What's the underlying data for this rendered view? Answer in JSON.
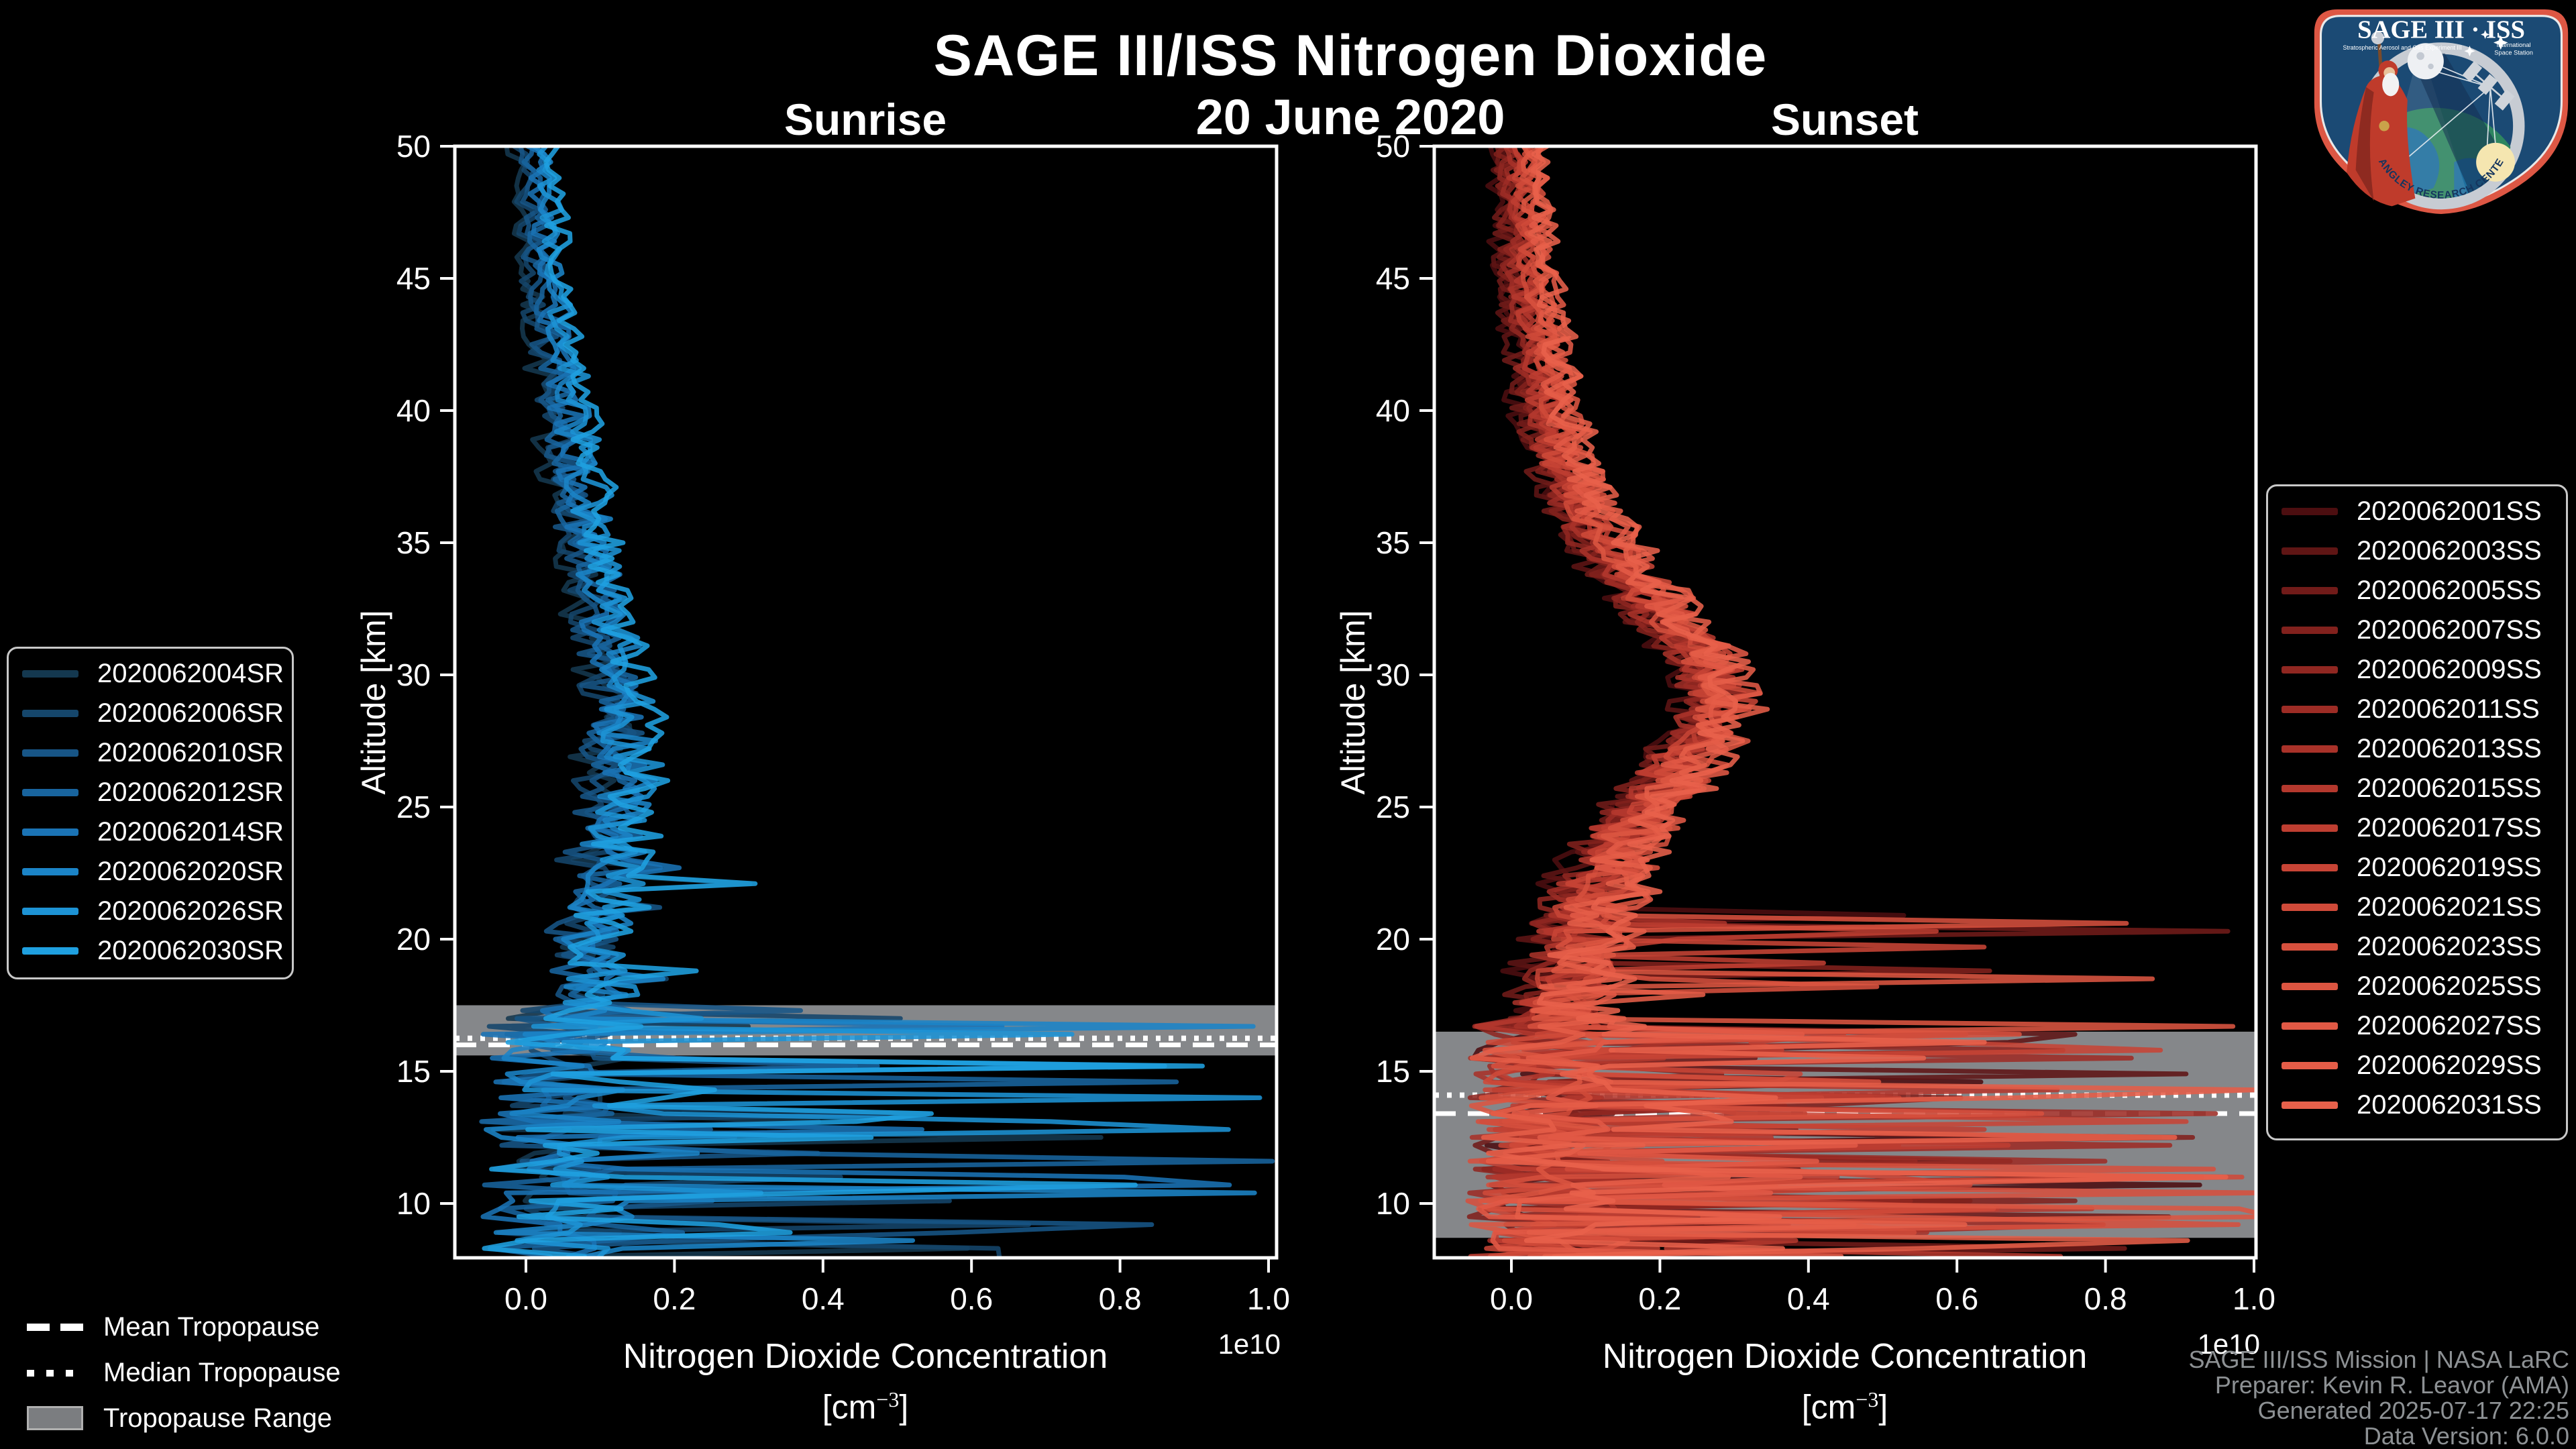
{
  "header": {
    "title": "SAGE III/ISS Nitrogen Dioxide",
    "date": "20 June 2020",
    "sunrise_label": "Sunrise",
    "sunset_label": "Sunset"
  },
  "axes": {
    "x_label": "Nitrogen Dioxide Concentration",
    "x_unit_prefix": "[cm",
    "x_unit_exp": "−3",
    "x_unit_suffix": "]",
    "x_offset_label": "1e10",
    "y_label": "Altitude [km]",
    "x_tick_labels": [
      "0.0",
      "0.2",
      "0.4",
      "0.6",
      "0.8",
      "1.0"
    ],
    "y_tick_labels": [
      "10",
      "15",
      "20",
      "25",
      "30",
      "35",
      "40",
      "45",
      "50"
    ]
  },
  "chart_data": [
    {
      "type": "line",
      "panel": "Sunrise",
      "xlabel": "Nitrogen Dioxide Concentration [cm^-3]",
      "ylabel": "Altitude [km]",
      "x_scale_factor": "1e10",
      "xlim_1e10": [
        -0.095,
        1.01
      ],
      "ylim_km": [
        8.0,
        50
      ],
      "series": [
        {
          "id": "2020062004SR",
          "color": "#14384f"
        },
        {
          "id": "2020062006SR",
          "color": "#15466b"
        },
        {
          "id": "2020062010SR",
          "color": "#175586"
        },
        {
          "id": "2020062012SR",
          "color": "#18649e"
        },
        {
          "id": "2020062014SR",
          "color": "#1a73b5"
        },
        {
          "id": "2020062020SR",
          "color": "#1b84c7"
        },
        {
          "id": "2020062026SR",
          "color": "#1d93d5"
        },
        {
          "id": "2020062030SR",
          "color": "#1fa0e0"
        }
      ],
      "mean_profile": {
        "altitude_km": [
          50,
          48,
          46,
          44,
          42,
          40,
          38,
          36,
          34,
          32,
          30,
          28,
          26,
          24,
          22,
          20,
          18.5,
          17.4
        ],
        "concentration_1e10": [
          0.01,
          0.016,
          0.022,
          0.03,
          0.04,
          0.051,
          0.063,
          0.076,
          0.09,
          0.105,
          0.118,
          0.127,
          0.124,
          0.113,
          0.098,
          0.085,
          0.08,
          0.088
        ]
      },
      "noise": {
        "turbulent_below_km": 17.4,
        "sporadic_below_km": 23,
        "max_1e10": 1.03
      },
      "tropopause": {
        "range_top_km": 17.5,
        "range_bottom_km": 15.6,
        "mean_km": 16.0,
        "median_km": 16.25
      }
    },
    {
      "type": "line",
      "panel": "Sunset",
      "xlabel": "Nitrogen Dioxide Concentration [cm^-3]",
      "ylabel": "Altitude [km]",
      "x_scale_factor": "1e10",
      "xlim_1e10": [
        -0.095,
        1.01
      ],
      "ylim_km": [
        8.0,
        50
      ],
      "series": [
        {
          "id": "2020062001SS",
          "color": "#4c0e10"
        },
        {
          "id": "2020062003SS",
          "color": "#5f1514"
        },
        {
          "id": "2020062005SS",
          "color": "#711b19"
        },
        {
          "id": "2020062007SS",
          "color": "#82211d"
        },
        {
          "id": "2020062009SS",
          "color": "#902721"
        },
        {
          "id": "2020062011SS",
          "color": "#9d2c25"
        },
        {
          "id": "2020062013SS",
          "color": "#a93229"
        },
        {
          "id": "2020062015SS",
          "color": "#b4382d"
        },
        {
          "id": "2020062017SS",
          "color": "#be3e31"
        },
        {
          "id": "2020062019SS",
          "color": "#c74435"
        },
        {
          "id": "2020062021SS",
          "color": "#cf4a39"
        },
        {
          "id": "2020062023SS",
          "color": "#d6503d"
        },
        {
          "id": "2020062025SS",
          "color": "#dc5541"
        },
        {
          "id": "2020062027SS",
          "color": "#e15945"
        },
        {
          "id": "2020062029SS",
          "color": "#e55d48"
        },
        {
          "id": "2020062031SS",
          "color": "#e8614b"
        }
      ],
      "mean_profile": {
        "altitude_km": [
          50,
          48,
          46,
          44,
          42,
          40,
          38,
          36,
          34,
          32,
          31,
          30,
          29,
          28,
          26,
          24,
          22,
          20,
          18,
          16.9
        ],
        "concentration_1e10": [
          0.01,
          0.014,
          0.019,
          0.027,
          0.037,
          0.05,
          0.068,
          0.103,
          0.15,
          0.215,
          0.248,
          0.272,
          0.283,
          0.268,
          0.213,
          0.158,
          0.118,
          0.088,
          0.07,
          0.066
        ]
      },
      "noise": {
        "turbulent_below_km": 16.9,
        "sporadic_below_km": 21,
        "max_1e10": 1.03
      },
      "tropopause": {
        "range_top_km": 16.5,
        "range_bottom_km": 8.7,
        "mean_km": 13.4,
        "median_km": 14.1
      }
    }
  ],
  "tropopause_legend": [
    {
      "label": "Mean Tropopause",
      "style": "dashed"
    },
    {
      "label": "Median Tropopause",
      "style": "dotted"
    },
    {
      "label": "Tropopause Range",
      "style": "band"
    }
  ],
  "footer": {
    "line1": "SAGE III/ISS Mission | NASA LaRC",
    "line2": "Preparer: Kevin R. Leavor (AMA)",
    "line3": "Generated 2025-07-17 22:25",
    "line4": "Data Version: 6.0.0"
  },
  "logo": {
    "title": "SAGE III · ISS",
    "sub_left": "Stratospheric Aerosol and Gas Experiment III",
    "sub_right_line1": "International",
    "sub_right_line2": "Space Station",
    "ring_text": "BALL • NASA LANGLEY RESEARCH CENTER • TAS-I • ESA"
  },
  "colors": {
    "background": "#000000",
    "text": "#ffffff",
    "footer_text": "#8d9194",
    "tropopause_band": "#85878a",
    "tropopause_lines": "#ffffff",
    "legend_border": "#c8c8c8",
    "patch_border": "#dd5744",
    "patch_field": "#1b4a74"
  }
}
